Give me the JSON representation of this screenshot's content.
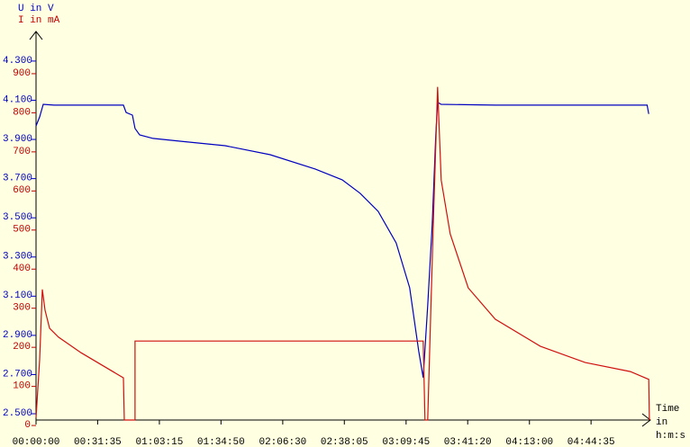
{
  "chart_data": {
    "type": "line",
    "y_label": "U in V",
    "y2_label": "I in mA",
    "x_label": [
      "Time",
      "in",
      "h:m:s"
    ],
    "xlim": [
      0,
      18900
    ],
    "ylim": [
      2.468,
      4.451
    ],
    "y2lim": [
      14,
      1008
    ],
    "xticks": [
      {
        "value": 0,
        "label": "00:00:00"
      },
      {
        "value": 1895,
        "label": "00:31:35"
      },
      {
        "value": 3795,
        "label": "01:03:15"
      },
      {
        "value": 5690,
        "label": "01:34:50"
      },
      {
        "value": 7590,
        "label": "02:06:30"
      },
      {
        "value": 9485,
        "label": "02:38:05"
      },
      {
        "value": 11385,
        "label": "03:09:45"
      },
      {
        "value": 13280,
        "label": "03:41:20"
      },
      {
        "value": 15180,
        "label": "04:13:00"
      },
      {
        "value": 17075,
        "label": "04:44:35"
      }
    ],
    "yticks": [
      {
        "value": 2.5,
        "label": "2.500"
      },
      {
        "value": 2.7,
        "label": "2.700"
      },
      {
        "value": 2.9,
        "label": "2.900"
      },
      {
        "value": 3.1,
        "label": "3.100"
      },
      {
        "value": 3.3,
        "label": "3.300"
      },
      {
        "value": 3.5,
        "label": "3.500"
      },
      {
        "value": 3.7,
        "label": "3.700"
      },
      {
        "value": 3.9,
        "label": "3.900"
      },
      {
        "value": 4.1,
        "label": "4.100"
      },
      {
        "value": 4.3,
        "label": "4.300"
      }
    ],
    "y2ticks": [
      0,
      100,
      200,
      300,
      400,
      500,
      600,
      700,
      800,
      900
    ],
    "series": [
      {
        "name": "U in V",
        "color": "#0000c0",
        "x": [
          0,
          111,
          222,
          554,
          2687,
          2770,
          2964,
          3047,
          3186,
          3601,
          4432,
          5817,
          7202,
          8587,
          9418,
          9972,
          10526,
          11080,
          11496,
          11773,
          11911,
          12050,
          12188,
          12299,
          12354,
          12465,
          14127,
          18282,
          18800,
          18850
        ],
        "values": [
          3.969,
          4.015,
          4.079,
          4.075,
          4.075,
          4.038,
          4.024,
          3.956,
          3.923,
          3.905,
          3.891,
          3.868,
          3.822,
          3.749,
          3.694,
          3.625,
          3.533,
          3.372,
          3.143,
          2.821,
          2.684,
          3.051,
          3.464,
          3.923,
          4.089,
          4.079,
          4.075,
          4.075,
          4.075,
          4.03
        ]
      },
      {
        "name": "I in mA",
        "color": "#d01010",
        "axis": "y2",
        "x": [
          0,
          111,
          194,
          277,
          416,
          693,
          1385,
          2687,
          2715,
          3047,
          3047,
          11911,
          11966,
          12050,
          12215,
          12354,
          12465,
          12742,
          13296,
          14127,
          15512,
          16897,
          18282,
          18850,
          18870
        ],
        "values": [
          20,
          168,
          348,
          295,
          249,
          226,
          186,
          122,
          14,
          14,
          216,
          216,
          14,
          14,
          500,
          866,
          628,
          490,
          352,
          272,
          203,
          161,
          138,
          118,
          14
        ]
      }
    ]
  }
}
